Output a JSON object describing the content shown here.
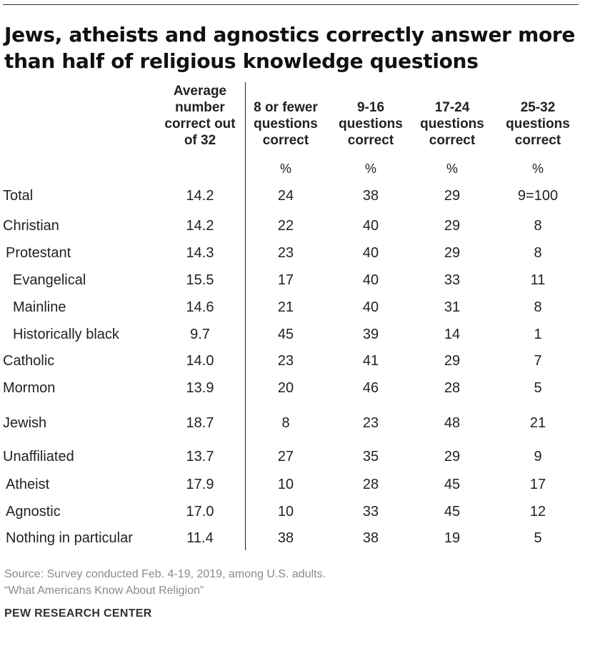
{
  "title": "Jews, atheists and agnostics correctly answer more than half of religious knowledge questions",
  "chart_data": {
    "type": "table",
    "columns": [
      {
        "lines": [
          "Average",
          "number",
          "correct out",
          "of 32"
        ],
        "unit": ""
      },
      {
        "lines": [
          "8 or fewer",
          "questions",
          "correct"
        ],
        "unit": "%"
      },
      {
        "lines": [
          "9-16",
          "questions",
          "correct"
        ],
        "unit": "%"
      },
      {
        "lines": [
          "17-24",
          "questions",
          "correct"
        ],
        "unit": "%"
      },
      {
        "lines": [
          "25-32",
          "questions",
          "correct"
        ],
        "unit": "%"
      }
    ],
    "rows": [
      {
        "label": "Total",
        "values": [
          "14.2",
          "24",
          "38",
          "29",
          "9=100"
        ]
      },
      {
        "label": "Christian",
        "values": [
          "14.2",
          "22",
          "40",
          "29",
          "8"
        ]
      },
      {
        "label": "Protestant",
        "values": [
          "14.3",
          "23",
          "40",
          "29",
          "8"
        ]
      },
      {
        "label": "Evangelical",
        "values": [
          "15.5",
          "17",
          "40",
          "33",
          "11"
        ]
      },
      {
        "label": "Mainline",
        "values": [
          "14.6",
          "21",
          "40",
          "31",
          "8"
        ]
      },
      {
        "label": "Historically black",
        "values": [
          "9.7",
          "45",
          "39",
          "14",
          "1"
        ]
      },
      {
        "label": "Catholic",
        "values": [
          "14.0",
          "23",
          "41",
          "29",
          "7"
        ]
      },
      {
        "label": "Mormon",
        "values": [
          "13.9",
          "20",
          "46",
          "28",
          "5"
        ]
      },
      {
        "label": "Jewish",
        "values": [
          "18.7",
          "8",
          "23",
          "48",
          "21"
        ]
      },
      {
        "label": "Unaffiliated",
        "values": [
          "13.7",
          "27",
          "35",
          "29",
          "9"
        ]
      },
      {
        "label": "Atheist",
        "values": [
          "17.9",
          "10",
          "28",
          "45",
          "17"
        ]
      },
      {
        "label": "Agnostic",
        "values": [
          "17.0",
          "10",
          "33",
          "45",
          "12"
        ]
      },
      {
        "label": "Nothing in particular",
        "values": [
          "11.4",
          "38",
          "38",
          "19",
          "5"
        ]
      }
    ]
  },
  "source": {
    "line1": "Source: Survey conducted Feb. 4-19, 2019, among U.S. adults.",
    "line2": "“What Americans Know About Religion”"
  },
  "brand": "PEW RESEARCH CENTER"
}
